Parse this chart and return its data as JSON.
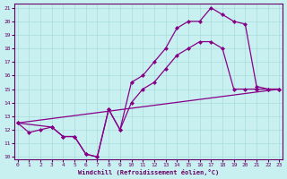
{
  "xlabel": "Windchill (Refroidissement éolien,°C)",
  "bg_color": "#c8f0f0",
  "grid_color": "#a8dcd8",
  "line_color": "#880088",
  "xmin": 0,
  "xmax": 23,
  "ymin": 10,
  "ymax": 21,
  "series1_x": [
    0,
    1,
    2,
    3,
    4,
    5,
    6,
    7,
    8,
    9,
    10,
    11,
    12,
    13,
    14,
    15,
    16,
    17,
    18,
    19,
    20,
    21,
    22,
    23
  ],
  "series1_y": [
    12.5,
    11.8,
    12.0,
    12.2,
    11.5,
    11.5,
    10.2,
    10.0,
    13.5,
    12.0,
    15.5,
    16.0,
    17.0,
    18.0,
    19.5,
    20.0,
    20.0,
    21.0,
    20.5,
    20.0,
    19.8,
    15.2,
    15.0,
    15.0
  ],
  "series2_x": [
    0,
    3,
    4,
    5,
    6,
    7,
    8,
    9,
    10,
    11,
    12,
    13,
    14,
    15,
    16,
    17,
    18,
    19,
    20,
    21,
    22,
    23
  ],
  "series2_y": [
    12.5,
    12.2,
    11.5,
    11.5,
    10.2,
    10.0,
    13.5,
    12.0,
    14.0,
    15.0,
    15.5,
    16.5,
    17.5,
    18.0,
    18.5,
    18.5,
    18.0,
    15.0,
    15.0,
    15.0,
    15.0,
    15.0
  ],
  "series3_x": [
    0,
    23
  ],
  "series3_y": [
    12.5,
    15.0
  ],
  "yticks": [
    10,
    11,
    12,
    13,
    14,
    15,
    16,
    17,
    18,
    19,
    20,
    21
  ],
  "xticks": [
    0,
    1,
    2,
    3,
    4,
    5,
    6,
    7,
    8,
    9,
    10,
    11,
    12,
    13,
    14,
    15,
    16,
    17,
    18,
    19,
    20,
    21,
    22,
    23
  ]
}
